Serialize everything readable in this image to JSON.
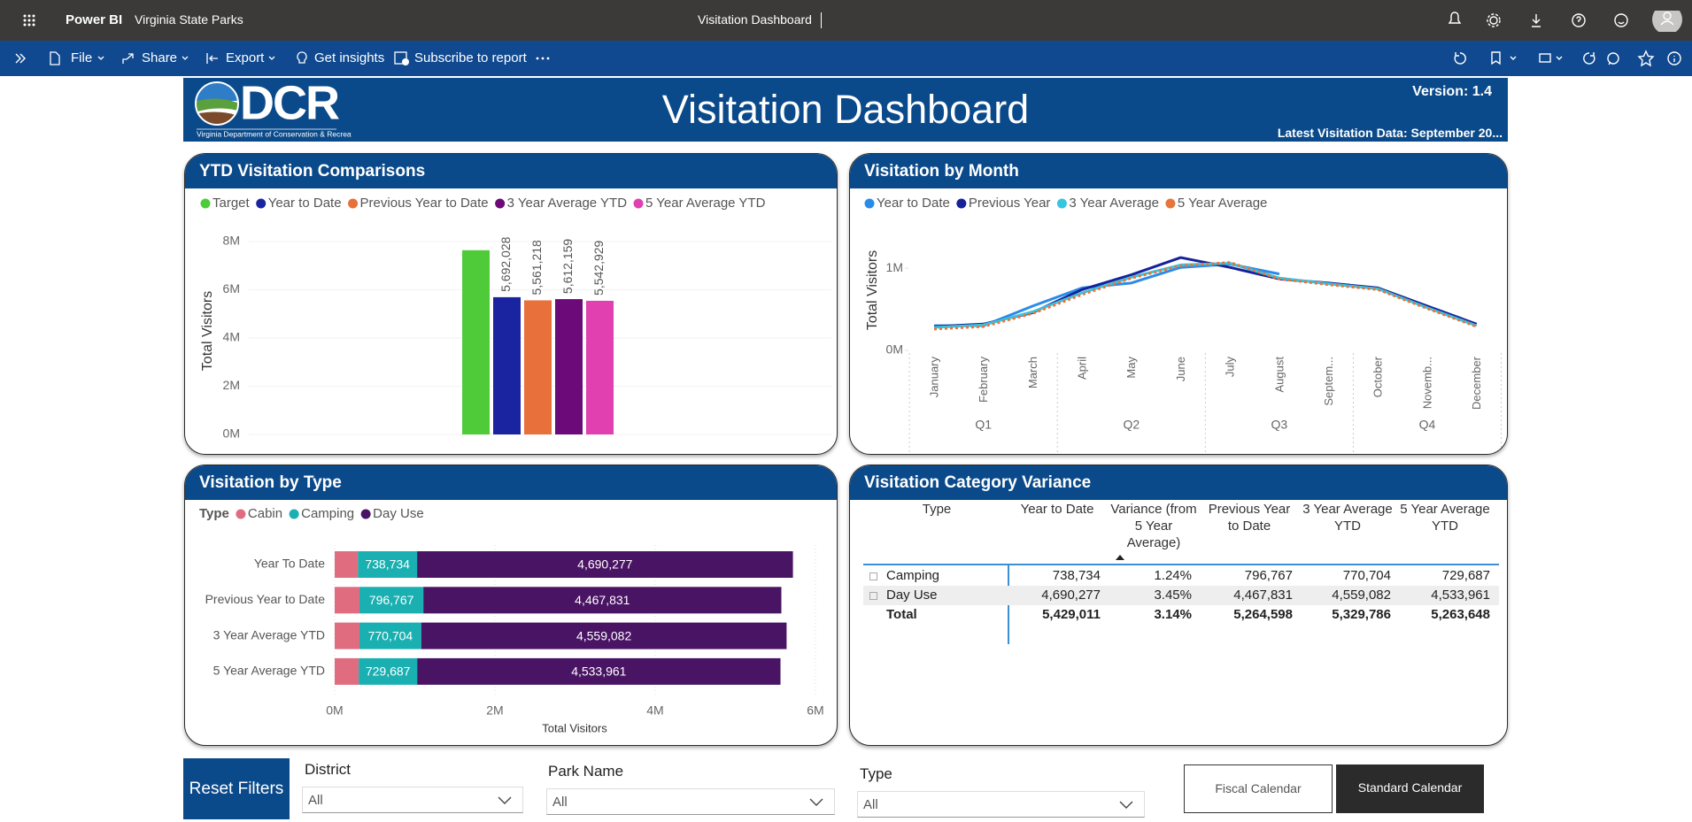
{
  "topbar": {
    "app": "Power BI",
    "workspace": "Virginia State Parks",
    "report": "Visitation Dashboard"
  },
  "toolbar": {
    "items": [
      "File",
      "Share",
      "Export",
      "Get insights",
      "Subscribe to report"
    ]
  },
  "header": {
    "logo": "DCR",
    "logo_caption": "Virginia Department of Conservation & Recreation",
    "title": "Visitation Dashboard",
    "version": "Version: 1.4",
    "latest": "Latest Visitation Data: September 20..."
  },
  "chart_data": [
    {
      "type": "bar",
      "title": "YTD Visitation Comparisons",
      "ylabel": "Total Visitors",
      "categories": [
        null
      ],
      "ylim": [
        0,
        8000000
      ],
      "yticks": [
        {
          "value": 0,
          "label": "0M"
        },
        {
          "value": 2000000,
          "label": "2M"
        },
        {
          "value": 4000000,
          "label": "4M"
        },
        {
          "value": 6000000,
          "label": "6M"
        },
        {
          "value": 8000000,
          "label": "8M"
        }
      ],
      "series": [
        {
          "name": "Target",
          "color": "#4fcb3a",
          "values": [
            7640000
          ]
        },
        {
          "name": "Year to Date",
          "color": "#1a24a0",
          "values": [
            5692028
          ],
          "value_labels": [
            "5,692,028"
          ]
        },
        {
          "name": "Previous Year to Date",
          "color": "#e8703a",
          "values": [
            5561218
          ],
          "value_labels": [
            "5,561,218"
          ]
        },
        {
          "name": "3 Year Average YTD",
          "color": "#6c0a7a",
          "values": [
            5612159
          ],
          "value_labels": [
            "5,612,159"
          ]
        },
        {
          "name": "5 Year Average YTD",
          "color": "#e040b0",
          "values": [
            5542929
          ],
          "value_labels": [
            "5,542,929"
          ]
        }
      ]
    },
    {
      "type": "line",
      "title": "Visitation by Month",
      "ylabel": "Total Visitors",
      "categories": [
        "January",
        "February",
        "March",
        "April",
        "May",
        "June",
        "July",
        "August",
        "Septem...",
        "October",
        "Novemb...",
        "December"
      ],
      "quarters": [
        "Q1",
        "Q2",
        "Q3",
        "Q4"
      ],
      "ylim": [
        0,
        1400000
      ],
      "yticks": [
        {
          "value": 0,
          "label": "0M"
        },
        {
          "value": 1000000,
          "label": "1M"
        }
      ],
      "series": [
        {
          "name": "Year to Date",
          "color": "#2b8ce8",
          "values": [
            300000,
            300000,
            540000,
            760000,
            820000,
            1010000,
            1050000,
            930000,
            null,
            null,
            null,
            null
          ]
        },
        {
          "name": "Previous Year",
          "color": "#15229a",
          "values": [
            290000,
            320000,
            460000,
            740000,
            920000,
            1130000,
            1010000,
            870000,
            820000,
            760000,
            540000,
            320000
          ]
        },
        {
          "name": "3 Year Average",
          "color": "#37c5e0",
          "values": [
            280000,
            310000,
            470000,
            700000,
            890000,
            1040000,
            1060000,
            880000,
            810000,
            750000,
            520000,
            300000
          ]
        },
        {
          "name": "5 Year Average",
          "color": "#e8743b",
          "dashed": true,
          "values": [
            260000,
            290000,
            450000,
            680000,
            880000,
            1030000,
            1070000,
            870000,
            800000,
            740000,
            510000,
            290000
          ]
        }
      ]
    },
    {
      "type": "stackedbar",
      "title": "Visitation by Type",
      "legend_title": "Type",
      "xlabel": "Total Visitors",
      "categories": [
        "Year To Date",
        "Previous Year to Date",
        "3 Year Average YTD",
        "5 Year Average YTD"
      ],
      "xlim": [
        0,
        6000000
      ],
      "xticks": [
        {
          "value": 0,
          "label": "0M"
        },
        {
          "value": 2000000,
          "label": "2M"
        },
        {
          "value": 4000000,
          "label": "4M"
        },
        {
          "value": 6000000,
          "label": "6M"
        }
      ],
      "series": [
        {
          "name": "Cabin",
          "color": "#e06c80",
          "values": [
            290000,
            310000,
            310000,
            300000
          ]
        },
        {
          "name": "Camping",
          "color": "#1aafb0",
          "values": [
            738734,
            796767,
            770704,
            729687
          ],
          "value_labels": [
            "738,734",
            "796,767",
            "770,704",
            "729,687"
          ]
        },
        {
          "name": "Day Use",
          "color": "#4a1464",
          "values": [
            4690277,
            4467831,
            4559082,
            4533961
          ],
          "value_labels": [
            "4,690,277",
            "4,467,831",
            "4,559,082",
            "4,533,961"
          ]
        }
      ]
    }
  ],
  "table": {
    "title": "Visitation Category Variance",
    "columns": [
      "Type",
      "Year to Date",
      "Variance (from 5 Year Average)",
      "Previous Year to Date",
      "3 Year Average YTD",
      "5 Year Average YTD"
    ],
    "rows": [
      [
        "Camping",
        "738,734",
        "1.24%",
        "796,767",
        "770,704",
        "729,687"
      ],
      [
        "Day Use",
        "4,690,277",
        "3.45%",
        "4,467,831",
        "4,559,082",
        "4,533,961"
      ],
      [
        "Total",
        "5,429,011",
        "3.14%",
        "5,264,598",
        "5,329,786",
        "5,263,648"
      ]
    ]
  },
  "filters": {
    "reset": "Reset Filters",
    "slicers": [
      {
        "label": "District",
        "value": "All"
      },
      {
        "label": "Park Name",
        "value": "All"
      },
      {
        "label": "Type",
        "value": "All"
      }
    ],
    "calendars": [
      "Fiscal Calendar",
      "Standard Calendar"
    ]
  }
}
